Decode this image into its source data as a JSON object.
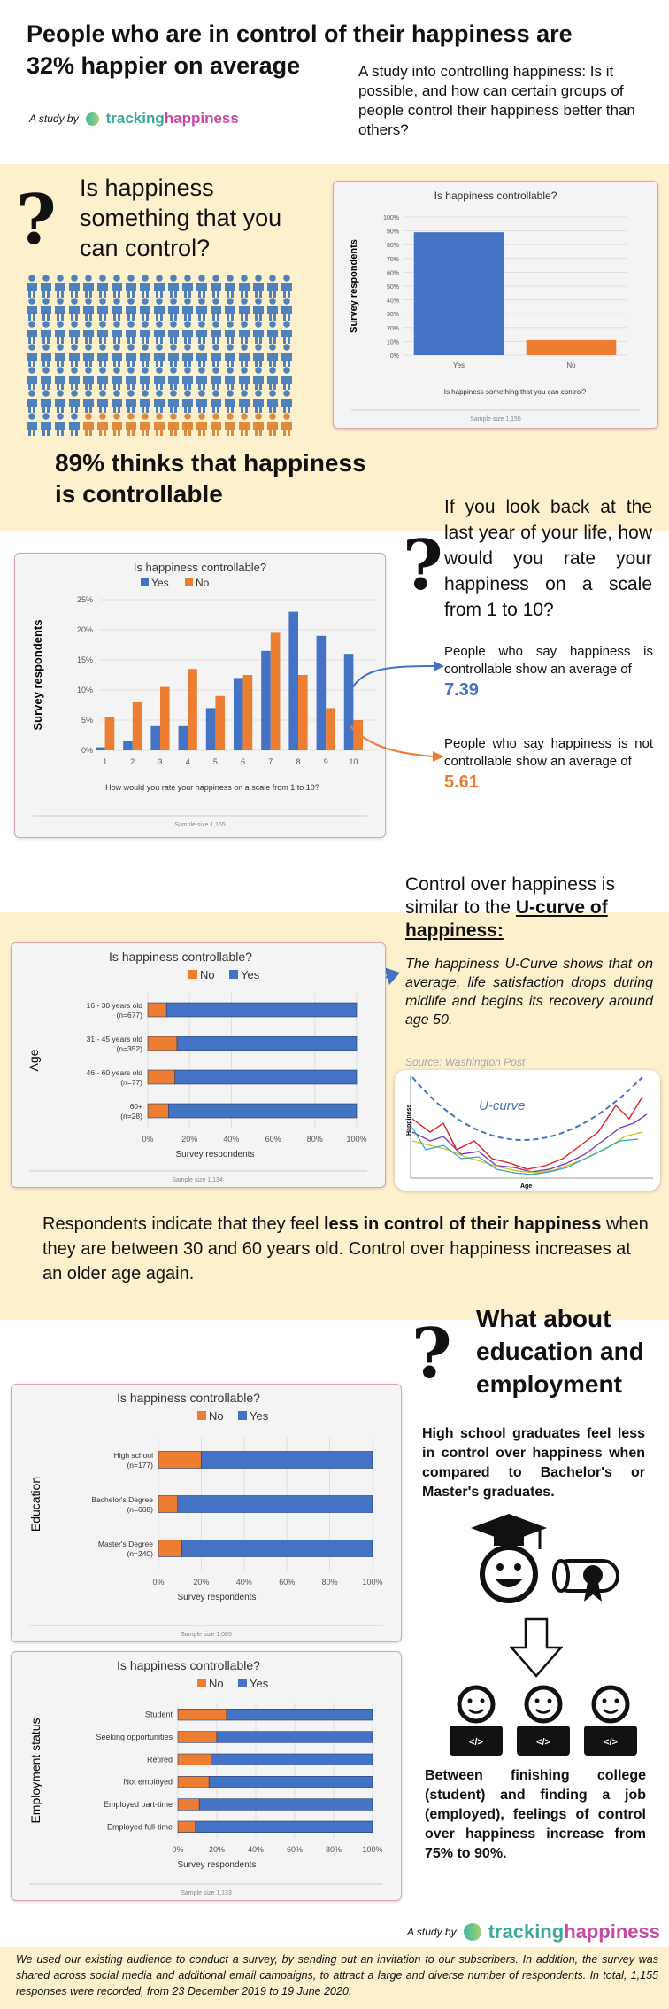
{
  "header": {
    "title_line1": "People who are in control of their happiness are",
    "title_line2": "32% happier on average",
    "study_by": "A study by",
    "brand_part1": "tracking",
    "brand_part2": "happiness",
    "intro": "A study into controlling happiness: Is it possible, and how can certain groups of people control their happiness better than others?"
  },
  "section1": {
    "question": "Is happiness something that you can control?",
    "stat": "89% thinks that happiness is controllable"
  },
  "section2": {
    "question": "If you look back at the last year of your life, how would you rate your happiness on a scale from 1 to 10?",
    "yes_text": "People who say happiness is controllable show an average of",
    "yes_value": "7.39",
    "no_text": "People who say happiness is not controllable show an average of",
    "no_value": "5.61"
  },
  "section3": {
    "heading_a": "Control over happiness is similar to the",
    "heading_b": "U-curve of happiness:",
    "desc": "The happiness U-Curve shows that on average, life satisfaction drops during midlife and begins its recovery around age 50.",
    "source": "Source: Washington Post",
    "ucurve_label": "U-curve",
    "ucurve_ylabel": "Happiness",
    "ucurve_xlabel": "Age"
  },
  "section4": {
    "text_pre": "Respondents indicate that they feel ",
    "text_bold": "less in control of their happiness",
    "text_post": " when they are between 30 and 60 years old. Control over happiness increases at an older age again."
  },
  "section5": {
    "heading": "What about education and employment",
    "edu_text": "High school graduates feel less in control over happiness when compared to Bachelor's or Master's graduates.",
    "emp_text": "Between finishing college (student) and finding a job (employed), feelings of control over happiness increase from 75% to 90%."
  },
  "footer": {
    "study_by": "A study by",
    "brand_part1": "tracking",
    "brand_part2": "happiness",
    "note": "We used our existing audience to conduct a survey, by sending out an invitation to our subscribers. In addition, the survey was shared across social media and additional email campaigns, to attract a large and diverse number of respondents. In total, 1,155 responses were recorded, from 23 December 2019 to 19 June 2020."
  },
  "colors": {
    "yes": "#4472c4",
    "no": "#ed7d31",
    "band": "#fdf0cc",
    "people_blue": "#4f81bd",
    "people_orange": "#e08a3c"
  },
  "chart_data": [
    {
      "type": "bar",
      "title": "Is happiness controllable?",
      "xlabel": "Is happiness something that you can control?",
      "ylabel": "Survey respondents",
      "categories": [
        "Yes",
        "No"
      ],
      "values": [
        89,
        11
      ],
      "yticks": [
        "100%",
        "90%",
        "80%",
        "70%",
        "60%",
        "50%",
        "40%",
        "30%",
        "20%",
        "10%",
        "0%"
      ],
      "ylim": [
        0,
        100
      ],
      "sample": "Sample size 1,155"
    },
    {
      "type": "bar",
      "title": "Is happiness controllable?",
      "xlabel": "How would you rate your happiness on a scale from 1 to 10?",
      "ylabel": "Survey respondents",
      "categories": [
        "1",
        "2",
        "3",
        "4",
        "5",
        "6",
        "7",
        "8",
        "9",
        "10"
      ],
      "series": [
        {
          "name": "Yes",
          "values": [
            0.5,
            1.5,
            4,
            4,
            7,
            12,
            16.5,
            23,
            19,
            16
          ]
        },
        {
          "name": "No",
          "values": [
            5.5,
            8,
            10.5,
            13.5,
            9,
            12.5,
            19.5,
            12.5,
            7,
            5
          ]
        }
      ],
      "yticks": [
        "25%",
        "20%",
        "15%",
        "10%",
        "5%",
        "0%"
      ],
      "ylim": [
        0,
        25
      ],
      "sample": "Sample size 1,155"
    },
    {
      "type": "bar",
      "orientation": "horizontal",
      "title": "Is happiness controllable?",
      "ylabel": "Age",
      "xlabel": "Survey respondents",
      "categories": [
        "16 - 30 years old (n=677)",
        "31 - 45 years old (n=352)",
        "46 - 60 years old (n=77)",
        "60+ (n=28)"
      ],
      "series": [
        {
          "name": "No",
          "values": [
            9,
            14,
            13,
            10
          ]
        },
        {
          "name": "Yes",
          "values": [
            91,
            86,
            87,
            90
          ]
        }
      ],
      "xticks": [
        "0%",
        "20%",
        "40%",
        "60%",
        "80%",
        "100%"
      ],
      "xlim": [
        0,
        100
      ],
      "sample": "Sample size 1,134"
    },
    {
      "type": "bar",
      "orientation": "horizontal",
      "title": "Is happiness controllable?",
      "ylabel": "Education",
      "xlabel": "Survey respondents",
      "categories": [
        "High school (n=177)",
        "Bachelor's Degree (n=668)",
        "Master's Degree (n=240)"
      ],
      "series": [
        {
          "name": "No",
          "values": [
            20,
            9,
            11
          ]
        },
        {
          "name": "Yes",
          "values": [
            80,
            91,
            89
          ]
        }
      ],
      "xticks": [
        "0%",
        "20%",
        "40%",
        "60%",
        "80%",
        "100%"
      ],
      "xlim": [
        0,
        100
      ],
      "sample": "Sample size 1,085"
    },
    {
      "type": "bar",
      "orientation": "horizontal",
      "title": "Is happiness controllable?",
      "ylabel": "Employment status",
      "xlabel": "Survey respondents",
      "categories": [
        "Student",
        "Seeking opportunities",
        "Retired",
        "Not employed",
        "Employed part-time",
        "Employed full-time"
      ],
      "series": [
        {
          "name": "No",
          "values": [
            25,
            20,
            17,
            16,
            11,
            9
          ]
        },
        {
          "name": "Yes",
          "values": [
            75,
            80,
            83,
            84,
            89,
            91
          ]
        }
      ],
      "xticks": [
        "0%",
        "20%",
        "40%",
        "60%",
        "80%",
        "100%"
      ],
      "xlim": [
        0,
        100
      ],
      "sample": "Sample size 1,133"
    }
  ]
}
